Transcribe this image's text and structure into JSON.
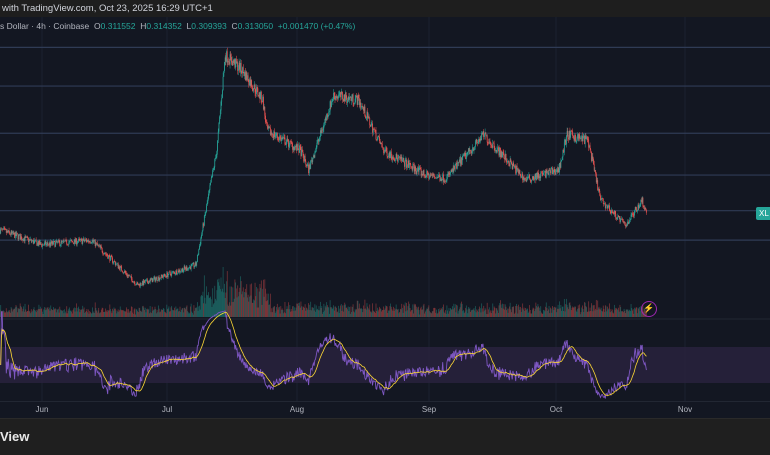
{
  "header": {
    "title": "with TradingView.com, Oct 23, 2025 16:29 UTC+1"
  },
  "legend": {
    "symbol": "s Dollar · 4h · Coinbase",
    "open_label": "O",
    "open": "0.311552",
    "high_label": "H",
    "high": "0.314352",
    "low_label": "L",
    "low": "0.309393",
    "close_label": "C",
    "close": "0.313050",
    "change": "+0.001470 (+0.47%)"
  },
  "price_label": "XL",
  "footer": {
    "logo_text": "View"
  },
  "colors": {
    "background": "#131722",
    "up": "#26a69a",
    "down": "#ef5350",
    "rsi": "#7e57c2",
    "rsi_ma": "#fdd835",
    "rsi_band": "#2a2340",
    "level_line": "#2f3b55"
  },
  "icons": {
    "alert": "lightning-alert-icon"
  },
  "chart_data": {
    "type": "candlestick",
    "timeframe": "4h",
    "x_ticks": [
      "Jun",
      "Jul",
      "Aug",
      "Sep",
      "Oct",
      "Nov"
    ],
    "horizontal_levels": [
      0.527,
      0.477,
      0.416,
      0.362,
      0.316,
      0.278
    ],
    "price_path": [
      [
        "2025-05-21",
        0.291
      ],
      [
        "2025-05-31",
        0.272
      ],
      [
        "2025-06-12",
        0.278
      ],
      [
        "2025-06-23",
        0.22
      ],
      [
        "2025-07-07",
        0.246
      ],
      [
        "2025-07-12",
        0.394
      ],
      [
        "2025-07-14",
        0.517
      ],
      [
        "2025-07-18",
        0.498
      ],
      [
        "2025-07-23",
        0.459
      ],
      [
        "2025-07-24",
        0.42
      ],
      [
        "2025-08-01",
        0.394
      ],
      [
        "2025-08-03",
        0.369
      ],
      [
        "2025-08-09",
        0.465
      ],
      [
        "2025-08-15",
        0.459
      ],
      [
        "2025-08-21",
        0.394
      ],
      [
        "2025-08-31",
        0.362
      ],
      [
        "2025-09-05",
        0.358
      ],
      [
        "2025-09-14",
        0.414
      ],
      [
        "2025-09-24",
        0.356
      ],
      [
        "2025-10-02",
        0.369
      ],
      [
        "2025-10-04",
        0.414
      ],
      [
        "2025-10-09",
        0.407
      ],
      [
        "2025-10-12",
        0.33
      ],
      [
        "2025-10-18",
        0.297
      ],
      [
        "2025-10-22",
        0.33
      ],
      [
        "2025-10-23",
        0.313
      ]
    ],
    "panes": [
      "price",
      "volume",
      "rsi"
    ],
    "grid": true
  }
}
